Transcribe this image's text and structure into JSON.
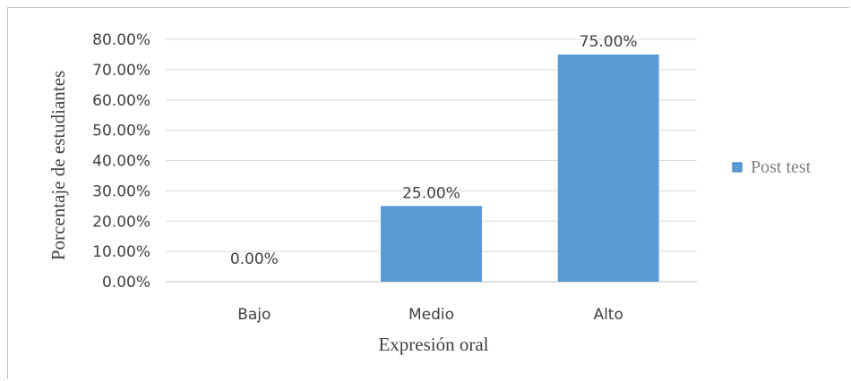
{
  "chart_data": {
    "type": "bar",
    "categories": [
      "Bajo",
      "Medio",
      "Alto"
    ],
    "series": [
      {
        "name": "Post test",
        "values": [
          0,
          25,
          75
        ],
        "color": "#5b9bd5"
      }
    ],
    "data_labels": [
      "0.00%",
      "25.00%",
      "75.00%"
    ],
    "y_ticks": [
      "0.00%",
      "10.00%",
      "20.00%",
      "30.00%",
      "40.00%",
      "50.00%",
      "60.00%",
      "70.00%",
      "80.00%"
    ],
    "ylim": [
      0,
      80
    ],
    "xlabel": "Expresión oral",
    "ylabel": "Porcentaje de estudiantes",
    "grid": true,
    "legend_position": "right"
  }
}
